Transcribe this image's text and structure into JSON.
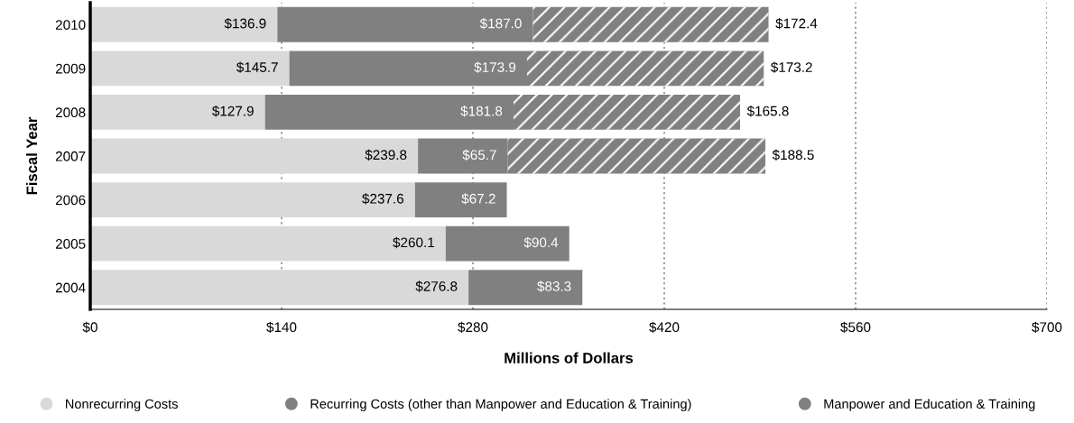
{
  "chart_data": {
    "type": "bar",
    "orientation": "horizontal",
    "stacked": true,
    "categories": [
      "2010",
      "2009",
      "2008",
      "2007",
      "2006",
      "2005",
      "2004"
    ],
    "series": [
      {
        "name": "Nonrecurring Costs",
        "color": "#d9d9d9",
        "values": [
          136.9,
          145.7,
          127.9,
          239.8,
          237.6,
          260.1,
          276.8
        ],
        "value_labels": [
          "$136.9",
          "$145.7",
          "$127.9",
          "$239.8",
          "$237.6",
          "$260.1",
          "$276.8"
        ]
      },
      {
        "name": "Recurring Costs (other than Manpower and Education & Training)",
        "color": "#808080",
        "values": [
          187.0,
          173.9,
          181.8,
          65.7,
          67.2,
          90.4,
          83.3
        ],
        "value_labels": [
          "$187.0",
          "$173.9",
          "$181.8",
          "$65.7",
          "$67.2",
          "$90.4",
          "$83.3"
        ]
      },
      {
        "name": "Manpower and Education & Training",
        "color": "#808080",
        "values": [
          172.4,
          173.2,
          165.8,
          188.5,
          null,
          null,
          null
        ],
        "value_labels": [
          "$172.4",
          "$173.2",
          "$165.8",
          "$188.5",
          null,
          null,
          null
        ]
      }
    ],
    "xlim": [
      0,
      700
    ],
    "xticks": [
      {
        "value": 0,
        "label": "$0"
      },
      {
        "value": 140,
        "label": "$140"
      },
      {
        "value": 280,
        "label": "$280"
      },
      {
        "value": 420,
        "label": "$420"
      },
      {
        "value": 560,
        "label": "$560"
      },
      {
        "value": 700,
        "label": "$700"
      }
    ],
    "xlabel": "Millions of Dollars",
    "ylabel": "Fiscal Year",
    "grid": "x",
    "legend": "bottom"
  }
}
